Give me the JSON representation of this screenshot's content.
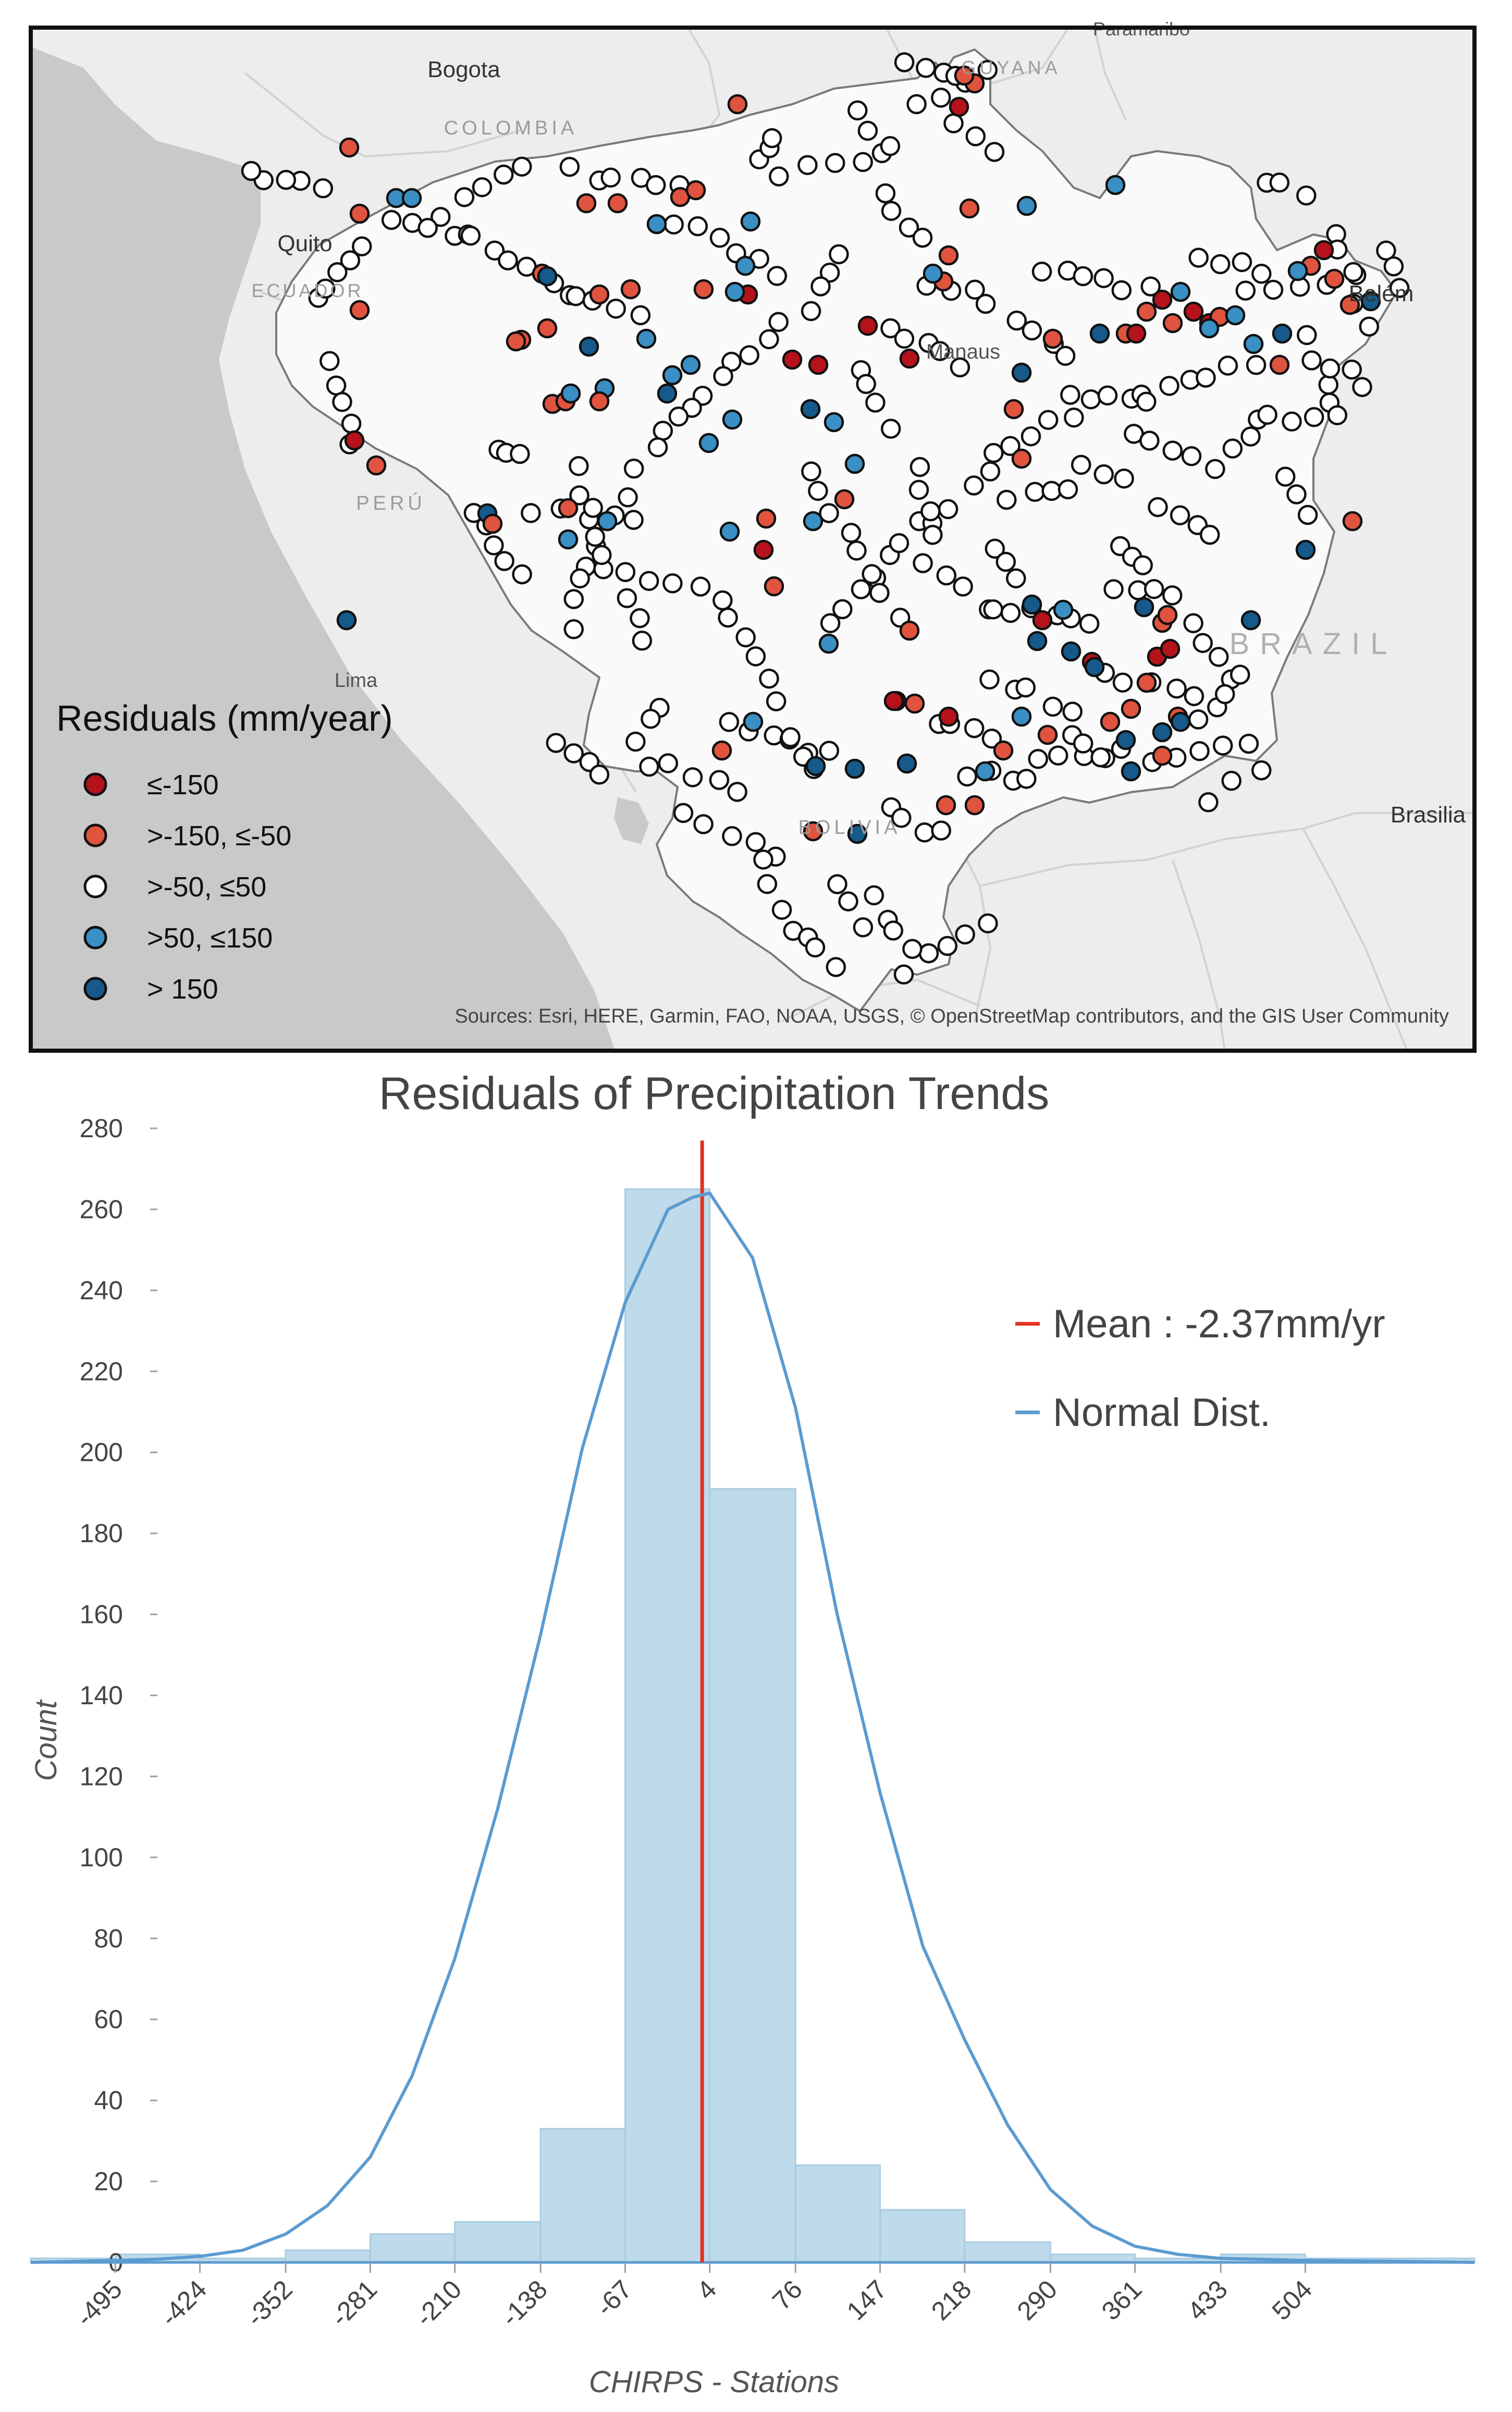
{
  "map": {
    "legend_title": "Residuals (mm/year)",
    "legend": [
      {
        "label": "≤-150",
        "color": "#b5121b"
      },
      {
        "label": ">-150, ≤-50",
        "color": "#e0533f"
      },
      {
        "label": ">-50, ≤50",
        "color": "#ffffff"
      },
      {
        "label": ">50, ≤150",
        "color": "#3a8fc4"
      },
      {
        "label": "> 150",
        "color": "#155a8a"
      }
    ],
    "places": {
      "bogota": "Bogota",
      "colombia": "COLOMBIA",
      "quito": "Quito",
      "ecuador": "ECUADOR",
      "peru": "PERÚ",
      "lima": "Lima",
      "bolivia": "BOLIVIA",
      "brazil": "BRAZIL",
      "manaus": "Manaus",
      "belem": "Belém",
      "brasilia": "Brasilia",
      "guyana": "GUYANA",
      "paramaribo": "Paramaribo"
    },
    "credits": "Sources: Esri, HERE, Garmin, FAO, NOAA, USGS, © OpenStreetMap contributors, and the GIS User Community",
    "colors": {
      "ocean": "#c9c9c9",
      "land": "#ededed",
      "basin": "#fafafa",
      "outline": "#7a7a7a"
    }
  },
  "chart_data": {
    "type": "bar",
    "title": "Residuals of Precipitation Trends",
    "xlabel": "CHIRPS - Stations",
    "ylabel": "Count",
    "xlim": [
      -566,
      646
    ],
    "ylim": [
      0,
      280
    ],
    "yticks": [
      0,
      20,
      40,
      60,
      80,
      100,
      120,
      140,
      160,
      180,
      200,
      220,
      240,
      260,
      280
    ],
    "xtick_labels": [
      "-495",
      "-424",
      "-352",
      "-281",
      "-210",
      "-138",
      "-67",
      "4",
      "76",
      "147",
      "218",
      "290",
      "361",
      "433",
      "504"
    ],
    "bins": [
      {
        "x0": -566,
        "x1": -495,
        "count": 1
      },
      {
        "x0": -495,
        "x1": -424,
        "count": 2
      },
      {
        "x0": -424,
        "x1": -352,
        "count": 1
      },
      {
        "x0": -352,
        "x1": -281,
        "count": 3
      },
      {
        "x0": -281,
        "x1": -210,
        "count": 7
      },
      {
        "x0": -210,
        "x1": -138,
        "count": 10
      },
      {
        "x0": -138,
        "x1": -67,
        "count": 33
      },
      {
        "x0": -67,
        "x1": 4,
        "count": 265
      },
      {
        "x0": 4,
        "x1": 76,
        "count": 191
      },
      {
        "x0": 76,
        "x1": 147,
        "count": 24
      },
      {
        "x0": 147,
        "x1": 218,
        "count": 13
      },
      {
        "x0": 218,
        "x1": 290,
        "count": 5
      },
      {
        "x0": 290,
        "x1": 361,
        "count": 2
      },
      {
        "x0": 361,
        "x1": 433,
        "count": 1
      },
      {
        "x0": 433,
        "x1": 504,
        "count": 2
      },
      {
        "x0": 504,
        "x1": 575,
        "count": 1
      },
      {
        "x0": 575,
        "x1": 646,
        "count": 1
      }
    ],
    "mean": -2.37,
    "normal_curve": {
      "name": "Normal Dist.",
      "x": [
        -566,
        -495,
        -459,
        -424,
        -388,
        -352,
        -317,
        -281,
        -246,
        -210,
        -174,
        -138,
        -103,
        -67,
        -31,
        -10,
        4,
        40,
        76,
        111,
        147,
        183,
        218,
        254,
        290,
        325,
        361,
        397,
        433,
        504,
        575,
        646
      ],
      "y": [
        0,
        0.5,
        0.8,
        1.5,
        3,
        7,
        14,
        26,
        46,
        75,
        112,
        155,
        201,
        237,
        260,
        263,
        264,
        248,
        211,
        160,
        116,
        78,
        55,
        34,
        18,
        9,
        4,
        2,
        1,
        0.5,
        0.3,
        0
      ]
    },
    "legend": [
      {
        "label": "Mean : -2.37mm/yr",
        "color": "#e2321e"
      },
      {
        "label": "Normal Dist.",
        "color": "#5b9bd0"
      }
    ],
    "colors": {
      "bar_fill": "#bfdaea",
      "bar_stroke": "#a8cce2",
      "curve": "#5b9bd0",
      "mean": "#e2321e",
      "axis": "#5b9bd0"
    }
  }
}
